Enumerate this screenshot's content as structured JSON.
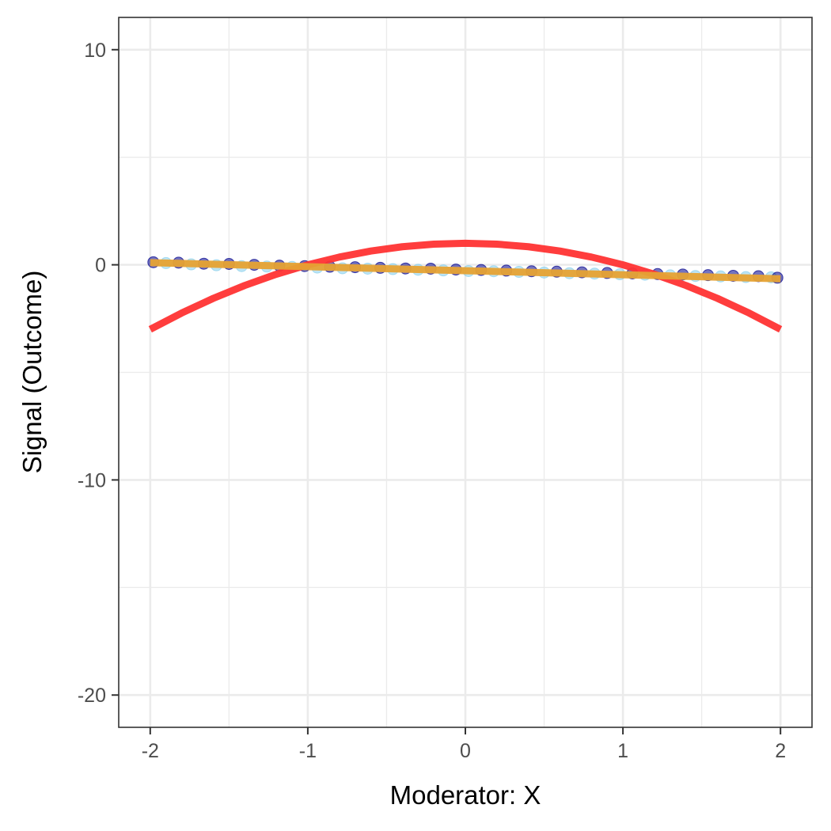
{
  "chart_data": {
    "type": "scatter",
    "title": "",
    "xlabel": "Moderator: X",
    "ylabel": "Signal (Outcome)",
    "xlim": [
      -2.2,
      2.2
    ],
    "ylim": [
      -21.5,
      11.5
    ],
    "x_ticks": [
      -2,
      -1,
      0,
      1,
      2
    ],
    "x_tick_labels": [
      "-2",
      "-1",
      "0",
      "1",
      "2"
    ],
    "y_ticks": [
      10,
      0,
      -10,
      -20
    ],
    "y_tick_labels": [
      "10",
      "0",
      "-10",
      "-20"
    ],
    "x_minor_ticks": [
      -1.5,
      -0.5,
      0.5,
      1.5
    ],
    "y_minor_ticks": [
      5,
      -5,
      -15
    ],
    "grid": true,
    "legend": "none",
    "series": [
      {
        "kind": "points",
        "colors": [
          "#00008b",
          "#87ceeb"
        ],
        "x": [
          -1.98,
          -1.9,
          -1.82,
          -1.74,
          -1.66,
          -1.58,
          -1.5,
          -1.42,
          -1.34,
          -1.26,
          -1.18,
          -1.1,
          -1.02,
          -0.94,
          -0.86,
          -0.78,
          -0.7,
          -0.62,
          -0.54,
          -0.46,
          -0.38,
          -0.3,
          -0.22,
          -0.14,
          -0.06,
          0.02,
          0.1,
          0.18,
          0.26,
          0.34,
          0.42,
          0.5,
          0.58,
          0.66,
          0.74,
          0.82,
          0.9,
          0.98,
          1.06,
          1.14,
          1.22,
          1.3,
          1.38,
          1.46,
          1.54,
          1.62,
          1.7,
          1.78,
          1.86,
          1.94,
          1.98
        ],
        "y": [
          0.12,
          0.08,
          0.1,
          0.02,
          0.05,
          -0.02,
          0.04,
          -0.06,
          0.0,
          -0.08,
          -0.04,
          -0.1,
          -0.06,
          -0.13,
          -0.09,
          -0.16,
          -0.11,
          -0.18,
          -0.14,
          -0.2,
          -0.17,
          -0.23,
          -0.18,
          -0.26,
          -0.22,
          -0.29,
          -0.24,
          -0.3,
          -0.27,
          -0.33,
          -0.3,
          -0.36,
          -0.32,
          -0.39,
          -0.35,
          -0.41,
          -0.38,
          -0.44,
          -0.4,
          -0.46,
          -0.43,
          -0.49,
          -0.45,
          -0.52,
          -0.48,
          -0.54,
          -0.51,
          -0.57,
          -0.53,
          -0.58,
          -0.6
        ]
      },
      {
        "kind": "line",
        "color": "#ff3333",
        "x": [
          -2,
          -1.8,
          -1.6,
          -1.4,
          -1.2,
          -1,
          -0.8,
          -0.6,
          -0.4,
          -0.2,
          0,
          0.2,
          0.4,
          0.6,
          0.8,
          1,
          1.2,
          1.4,
          1.6,
          1.8,
          2
        ],
        "y": [
          -3,
          -2.24,
          -1.56,
          -0.96,
          -0.44,
          0,
          0.36,
          0.64,
          0.84,
          0.96,
          1,
          0.96,
          0.84,
          0.64,
          0.36,
          0,
          -0.44,
          -0.96,
          -1.56,
          -2.24,
          -3
        ]
      },
      {
        "kind": "line",
        "color": "#e6a233",
        "x": [
          -2,
          2
        ],
        "y": [
          0.1,
          -0.65
        ]
      }
    ]
  }
}
